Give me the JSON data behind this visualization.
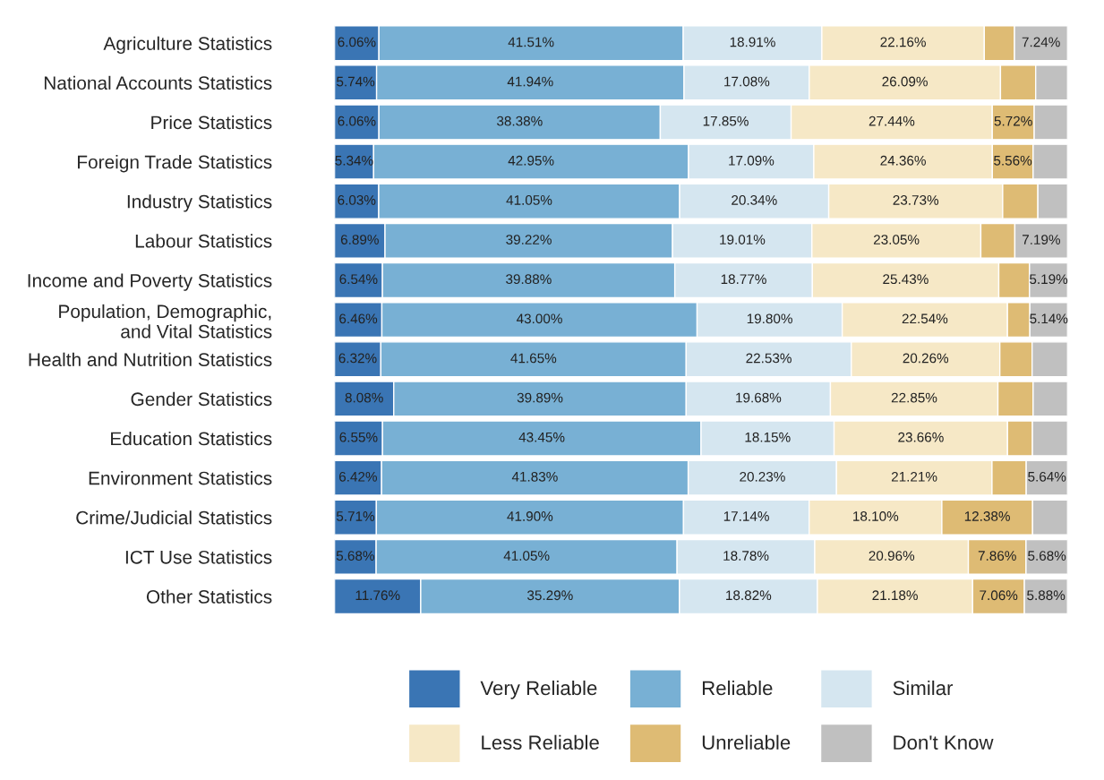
{
  "chart_data": {
    "type": "bar",
    "orientation": "horizontal",
    "stacked": true,
    "categories": [
      "Agriculture Statistics",
      "National Accounts Statistics",
      "Price Statistics",
      "Foreign Trade Statistics",
      "Industry Statistics",
      "Labour Statistics",
      "Income and Poverty Statistics",
      "Population, Demographic,\nand Vital Statistics",
      "Health and Nutrition Statistics",
      "Gender Statistics",
      "Education Statistics",
      "Environment Statistics",
      "Crime/Judicial Statistics",
      "ICT Use Statistics",
      "Other Statistics"
    ],
    "xlim": [
      0,
      100
    ],
    "tick_labels": "y",
    "grid": false,
    "legend": "bottom",
    "series": [
      {
        "name": "Very Reliable",
        "color": "#3a75b4",
        "values": [
          6.06,
          5.74,
          6.06,
          5.34,
          6.03,
          6.89,
          6.54,
          6.46,
          6.32,
          8.08,
          6.55,
          6.42,
          5.71,
          5.68,
          11.76
        ],
        "value_labels": [
          "6.06%",
          "5.74%",
          "6.06%",
          "5.34%",
          "6.03%",
          "6.89%",
          "6.54%",
          "6.46%",
          "6.32%",
          "8.08%",
          "6.55%",
          "6.42%",
          "5.71%",
          "5.68%",
          "11.76%"
        ]
      },
      {
        "name": "Reliable",
        "color": "#78b0d4",
        "values": [
          41.51,
          41.94,
          38.38,
          42.95,
          41.05,
          39.22,
          39.88,
          43.0,
          41.65,
          39.89,
          43.45,
          41.83,
          41.9,
          41.05,
          35.29
        ],
        "value_labels": [
          "41.51%",
          "41.94%",
          "38.38%",
          "42.95%",
          "41.05%",
          "39.22%",
          "39.88%",
          "43.00%",
          "41.65%",
          "39.89%",
          "43.45%",
          "41.83%",
          "41.90%",
          "41.05%",
          "35.29%"
        ]
      },
      {
        "name": "Similar",
        "color": "#d5e6f0",
        "values": [
          18.91,
          17.08,
          17.85,
          17.09,
          20.34,
          19.01,
          18.77,
          19.8,
          22.53,
          19.68,
          18.15,
          20.23,
          17.14,
          18.78,
          18.82
        ],
        "value_labels": [
          "18.91%",
          "17.08%",
          "17.85%",
          "17.09%",
          "20.34%",
          "19.01%",
          "18.77%",
          "19.80%",
          "22.53%",
          "19.68%",
          "18.15%",
          "20.23%",
          "17.14%",
          "18.78%",
          "18.82%"
        ]
      },
      {
        "name": "Less Reliable",
        "color": "#f6e8c6",
        "values": [
          22.16,
          26.09,
          27.44,
          24.36,
          23.73,
          23.05,
          25.43,
          22.54,
          20.26,
          22.85,
          23.66,
          21.21,
          18.1,
          20.96,
          21.18
        ],
        "value_labels": [
          "22.16%",
          "26.09%",
          "27.44%",
          "24.36%",
          "23.73%",
          "23.05%",
          "25.43%",
          "22.54%",
          "20.26%",
          "22.85%",
          "23.66%",
          "21.21%",
          "18.10%",
          "20.96%",
          "21.18%"
        ]
      },
      {
        "name": "Unreliable",
        "color": "#debb74",
        "values": [
          4.12,
          4.8,
          5.72,
          5.56,
          4.8,
          4.64,
          4.19,
          3.06,
          4.4,
          4.8,
          3.4,
          4.67,
          12.38,
          7.86,
          7.06
        ],
        "value_labels": [
          null,
          null,
          "5.72%",
          "5.56%",
          null,
          null,
          null,
          null,
          null,
          null,
          null,
          null,
          "12.38%",
          "7.86%",
          "7.06%"
        ]
      },
      {
        "name": "Don't Know",
        "color": "#c0c0c0",
        "values": [
          7.24,
          4.35,
          4.55,
          4.7,
          4.05,
          7.19,
          5.19,
          5.14,
          4.84,
          4.7,
          4.79,
          5.64,
          4.77,
          5.68,
          5.88
        ],
        "value_labels": [
          "7.24%",
          null,
          null,
          null,
          null,
          "7.19%",
          "5.19%",
          "5.14%",
          null,
          null,
          null,
          "5.64%",
          null,
          "5.68%",
          "5.88%"
        ]
      }
    ]
  }
}
